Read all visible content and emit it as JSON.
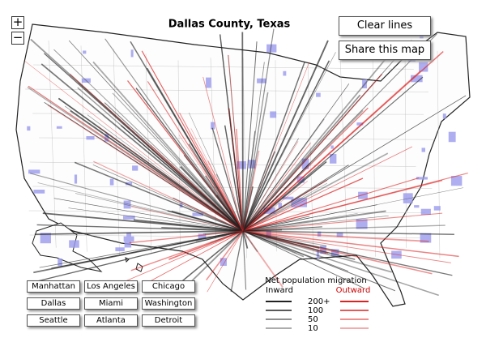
{
  "header": {
    "title": "Dallas County, Texas"
  },
  "controls": {
    "zoom_in": "+",
    "zoom_out": "−",
    "clear": "Clear lines",
    "share": "Share this map"
  },
  "cities": [
    "Manhattan",
    "Los Angeles",
    "Chicago",
    "Dallas",
    "Miami",
    "Washington",
    "Seattle",
    "Atlanta",
    "Detroit"
  ],
  "legend": {
    "title": "Net population migration",
    "inward": "Inward",
    "outward": "Outward",
    "levels": [
      "200+",
      "100",
      "50",
      "10"
    ]
  }
}
